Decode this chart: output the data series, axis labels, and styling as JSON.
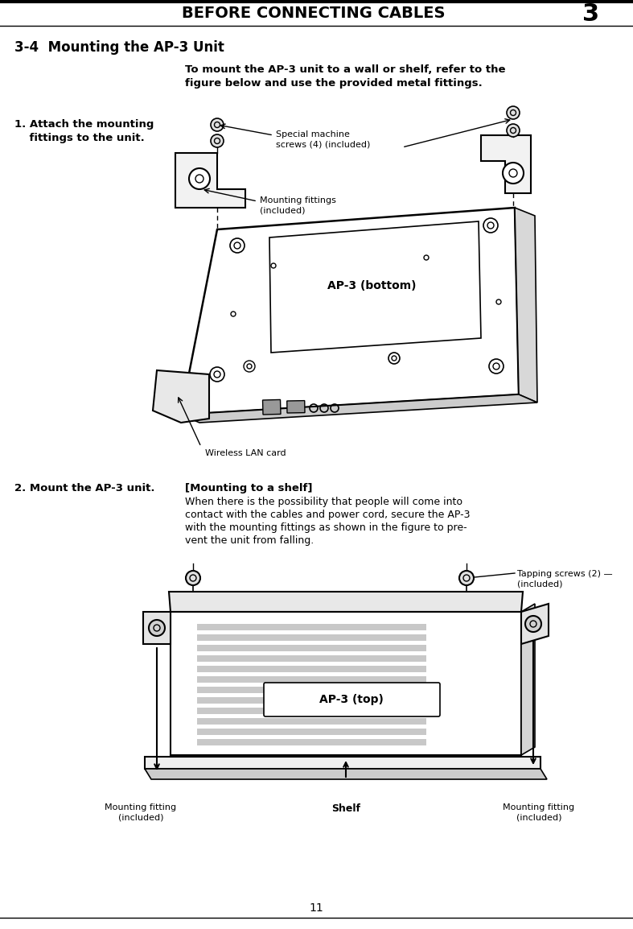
{
  "page_title": "BEFORE CONNECTING CABLES",
  "chapter_num": "3",
  "section_title": "3-4  Mounting the AP-3 Unit",
  "step1_label_line1": "1. Attach the mounting",
  "step1_label_line2": "    fittings to the unit.",
  "step2_label": "2. Mount the AP-3 unit.",
  "step2_sub": "[Mounting to a shelf]",
  "step2_text_line1": "When there is the possibility that people will come into",
  "step2_text_line2": "contact with the cables and power cord, secure the AP-3",
  "step2_text_line3": "with the mounting fittings as shown in the figure to pre-",
  "step2_text_line4": "vent the unit from falling.",
  "intro_line1": "To mount the AP-3 unit to a wall or shelf, refer to the",
  "intro_line2": "figure below and use the provided metal fittings.",
  "label_special_machine_line1": "Special machine",
  "label_special_machine_line2": "screws (4) (included)",
  "label_mounting_fittings_line1": "Mounting fittings",
  "label_mounting_fittings_line2": "(included)",
  "label_wireless_lan": "Wireless LAN card",
  "label_ap3_bottom": "AP-3 (bottom)",
  "label_ap3_top": "AP-3 (top)",
  "label_tapping_line1": "Tapping screws (2) —",
  "label_tapping_line2": "(included)",
  "label_mounting_fitting_left_line1": "Mounting fitting",
  "label_mounting_fitting_left_line2": "(included)",
  "label_mounting_fitting_right_line1": "Mounting fitting",
  "label_mounting_fitting_right_line2": "(included)",
  "label_shelf": "Shelf",
  "page_num": "11",
  "bg_color": "#ffffff",
  "text_color": "#000000"
}
